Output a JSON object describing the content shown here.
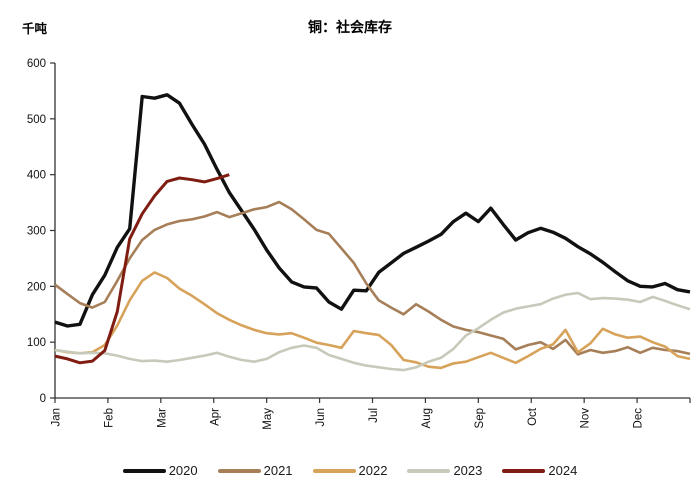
{
  "header": {
    "unit_label": "千吨",
    "title": "铜：社会库存"
  },
  "chart_data": {
    "type": "line",
    "title": "铜：社会库存",
    "unit": "千吨",
    "grid": false,
    "legend_position": "bottom-center",
    "x_axis": {
      "tick_labels": [
        "Jan",
        "Feb",
        "Mar",
        "Apr",
        "May",
        "Jun",
        "Jul",
        "Aug",
        "Sep",
        "Oct",
        "Nov",
        "Dec"
      ],
      "labels_rotated_90": true,
      "points_per_year": 52
    },
    "y_axis": {
      "min": 0,
      "max": 600,
      "tick_step": 100,
      "tick_labels": [
        "0",
        "100",
        "200",
        "300",
        "400",
        "500",
        "600"
      ]
    },
    "series": [
      {
        "name": "2020",
        "color": "#111111",
        "line_width": 3.4,
        "values": [
          136,
          129,
          132,
          185,
          220,
          270,
          303,
          540,
          537,
          543,
          528,
          490,
          455,
          410,
          368,
          335,
          302,
          265,
          233,
          208,
          199,
          197,
          172,
          159,
          193,
          192,
          225,
          242,
          259,
          270,
          281,
          293,
          316,
          331,
          316,
          340,
          311,
          283,
          296,
          304,
          297,
          286,
          271,
          258,
          243,
          226,
          210,
          200,
          199,
          205,
          194,
          190
        ]
      },
      {
        "name": "2021",
        "color": "#A67F59",
        "line_width": 2.6,
        "values": [
          203,
          186,
          170,
          162,
          172,
          210,
          250,
          283,
          301,
          311,
          317,
          320,
          325,
          333,
          324,
          331,
          338,
          342,
          351,
          338,
          320,
          301,
          294,
          268,
          242,
          205,
          175,
          162,
          150,
          168,
          155,
          140,
          128,
          122,
          118,
          112,
          106,
          87,
          95,
          100,
          88,
          104,
          78,
          86,
          81,
          84,
          91,
          81,
          90,
          86,
          84,
          79
        ]
      },
      {
        "name": "2022",
        "color": "#D7A259",
        "line_width": 2.6,
        "values": [
          86,
          82,
          80,
          82,
          95,
          130,
          175,
          210,
          225,
          215,
          196,
          183,
          168,
          152,
          140,
          130,
          122,
          116,
          114,
          116,
          108,
          99,
          95,
          90,
          120,
          116,
          113,
          95,
          68,
          64,
          56,
          54,
          62,
          65,
          73,
          81,
          72,
          63,
          75,
          88,
          96,
          122,
          82,
          98,
          124,
          114,
          108,
          110,
          100,
          92,
          75,
          70
        ]
      },
      {
        "name": "2023",
        "color": "#C7CABA",
        "line_width": 2.6,
        "values": [
          86,
          83,
          80,
          81,
          80,
          76,
          70,
          66,
          67,
          65,
          68,
          72,
          76,
          81,
          74,
          68,
          65,
          70,
          82,
          90,
          94,
          90,
          77,
          70,
          63,
          58,
          55,
          52,
          50,
          55,
          65,
          72,
          88,
          112,
          125,
          140,
          153,
          160,
          164,
          168,
          178,
          185,
          188,
          177,
          179,
          178,
          176,
          172,
          181,
          174,
          166,
          159
        ]
      },
      {
        "name": "2024",
        "color": "#7F1D12",
        "line_width": 3.0,
        "values": [
          75,
          70,
          63,
          66,
          85,
          155,
          285,
          330,
          362,
          388,
          394,
          391,
          387,
          393,
          400
        ]
      }
    ]
  }
}
